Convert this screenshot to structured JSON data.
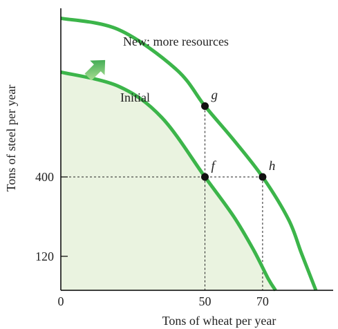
{
  "chart_data": {
    "type": "line",
    "xlabel": "Tons of wheat per year",
    "ylabel": "Tons of steel per year",
    "xlim": [
      0,
      97
    ],
    "ylim": [
      0,
      1020
    ],
    "x_ticks": [
      {
        "value": 0,
        "label": "0"
      },
      {
        "value": 50,
        "label": "50"
      },
      {
        "value": 70,
        "label": "70"
      }
    ],
    "y_ticks": [
      {
        "value": 120,
        "label": "120"
      },
      {
        "value": 400,
        "label": "400"
      }
    ],
    "series": [
      {
        "name": "Initial",
        "x": [
          0,
          20,
          35,
          50,
          60,
          67,
          72,
          74.5
        ],
        "y": [
          770,
          720,
          610,
          400,
          260,
          140,
          40,
          0
        ]
      },
      {
        "name": "New: more resources",
        "x": [
          0,
          20,
          40,
          50,
          60,
          70,
          79,
          83.5,
          88.5
        ],
        "y": [
          960,
          920,
          780,
          650,
          530,
          400,
          250,
          130,
          0
        ]
      }
    ],
    "points": [
      {
        "label": "g",
        "x": 50,
        "y": 650
      },
      {
        "label": "f",
        "x": 50,
        "y": 400
      },
      {
        "label": "h",
        "x": 70,
        "y": 400
      }
    ],
    "colors": {
      "curve": "#3cb54a",
      "fill": "#eaf3e0",
      "arrow_light": "#bfe8a0",
      "arrow_dark": "#1e9a3e"
    },
    "grid": false,
    "legend": "none"
  }
}
